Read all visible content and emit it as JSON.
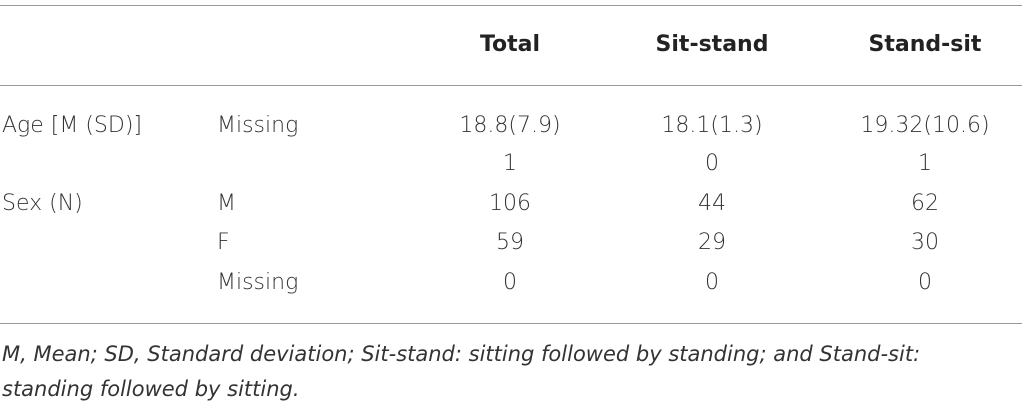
{
  "table": {
    "header": [
      null,
      null,
      "Total",
      "Sit-stand",
      "Stand-sit"
    ],
    "rows": [
      [
        "Age [M (SD)]",
        "Missing",
        "18.8(7.9)",
        "18.1(1.3)",
        "19.32(10.6)"
      ],
      [
        null,
        null,
        "1",
        "0",
        "1"
      ],
      [
        "Sex (N)",
        "M",
        "106",
        "44",
        "62"
      ],
      [
        null,
        "F",
        "59",
        "29",
        "30"
      ],
      [
        null,
        "Missing",
        "0",
        "0",
        "0"
      ]
    ],
    "footnote": "M, Mean; SD, Standard deviation; Sit-stand: sitting followed by standing; and Stand-sit: standing followed by sitting."
  }
}
